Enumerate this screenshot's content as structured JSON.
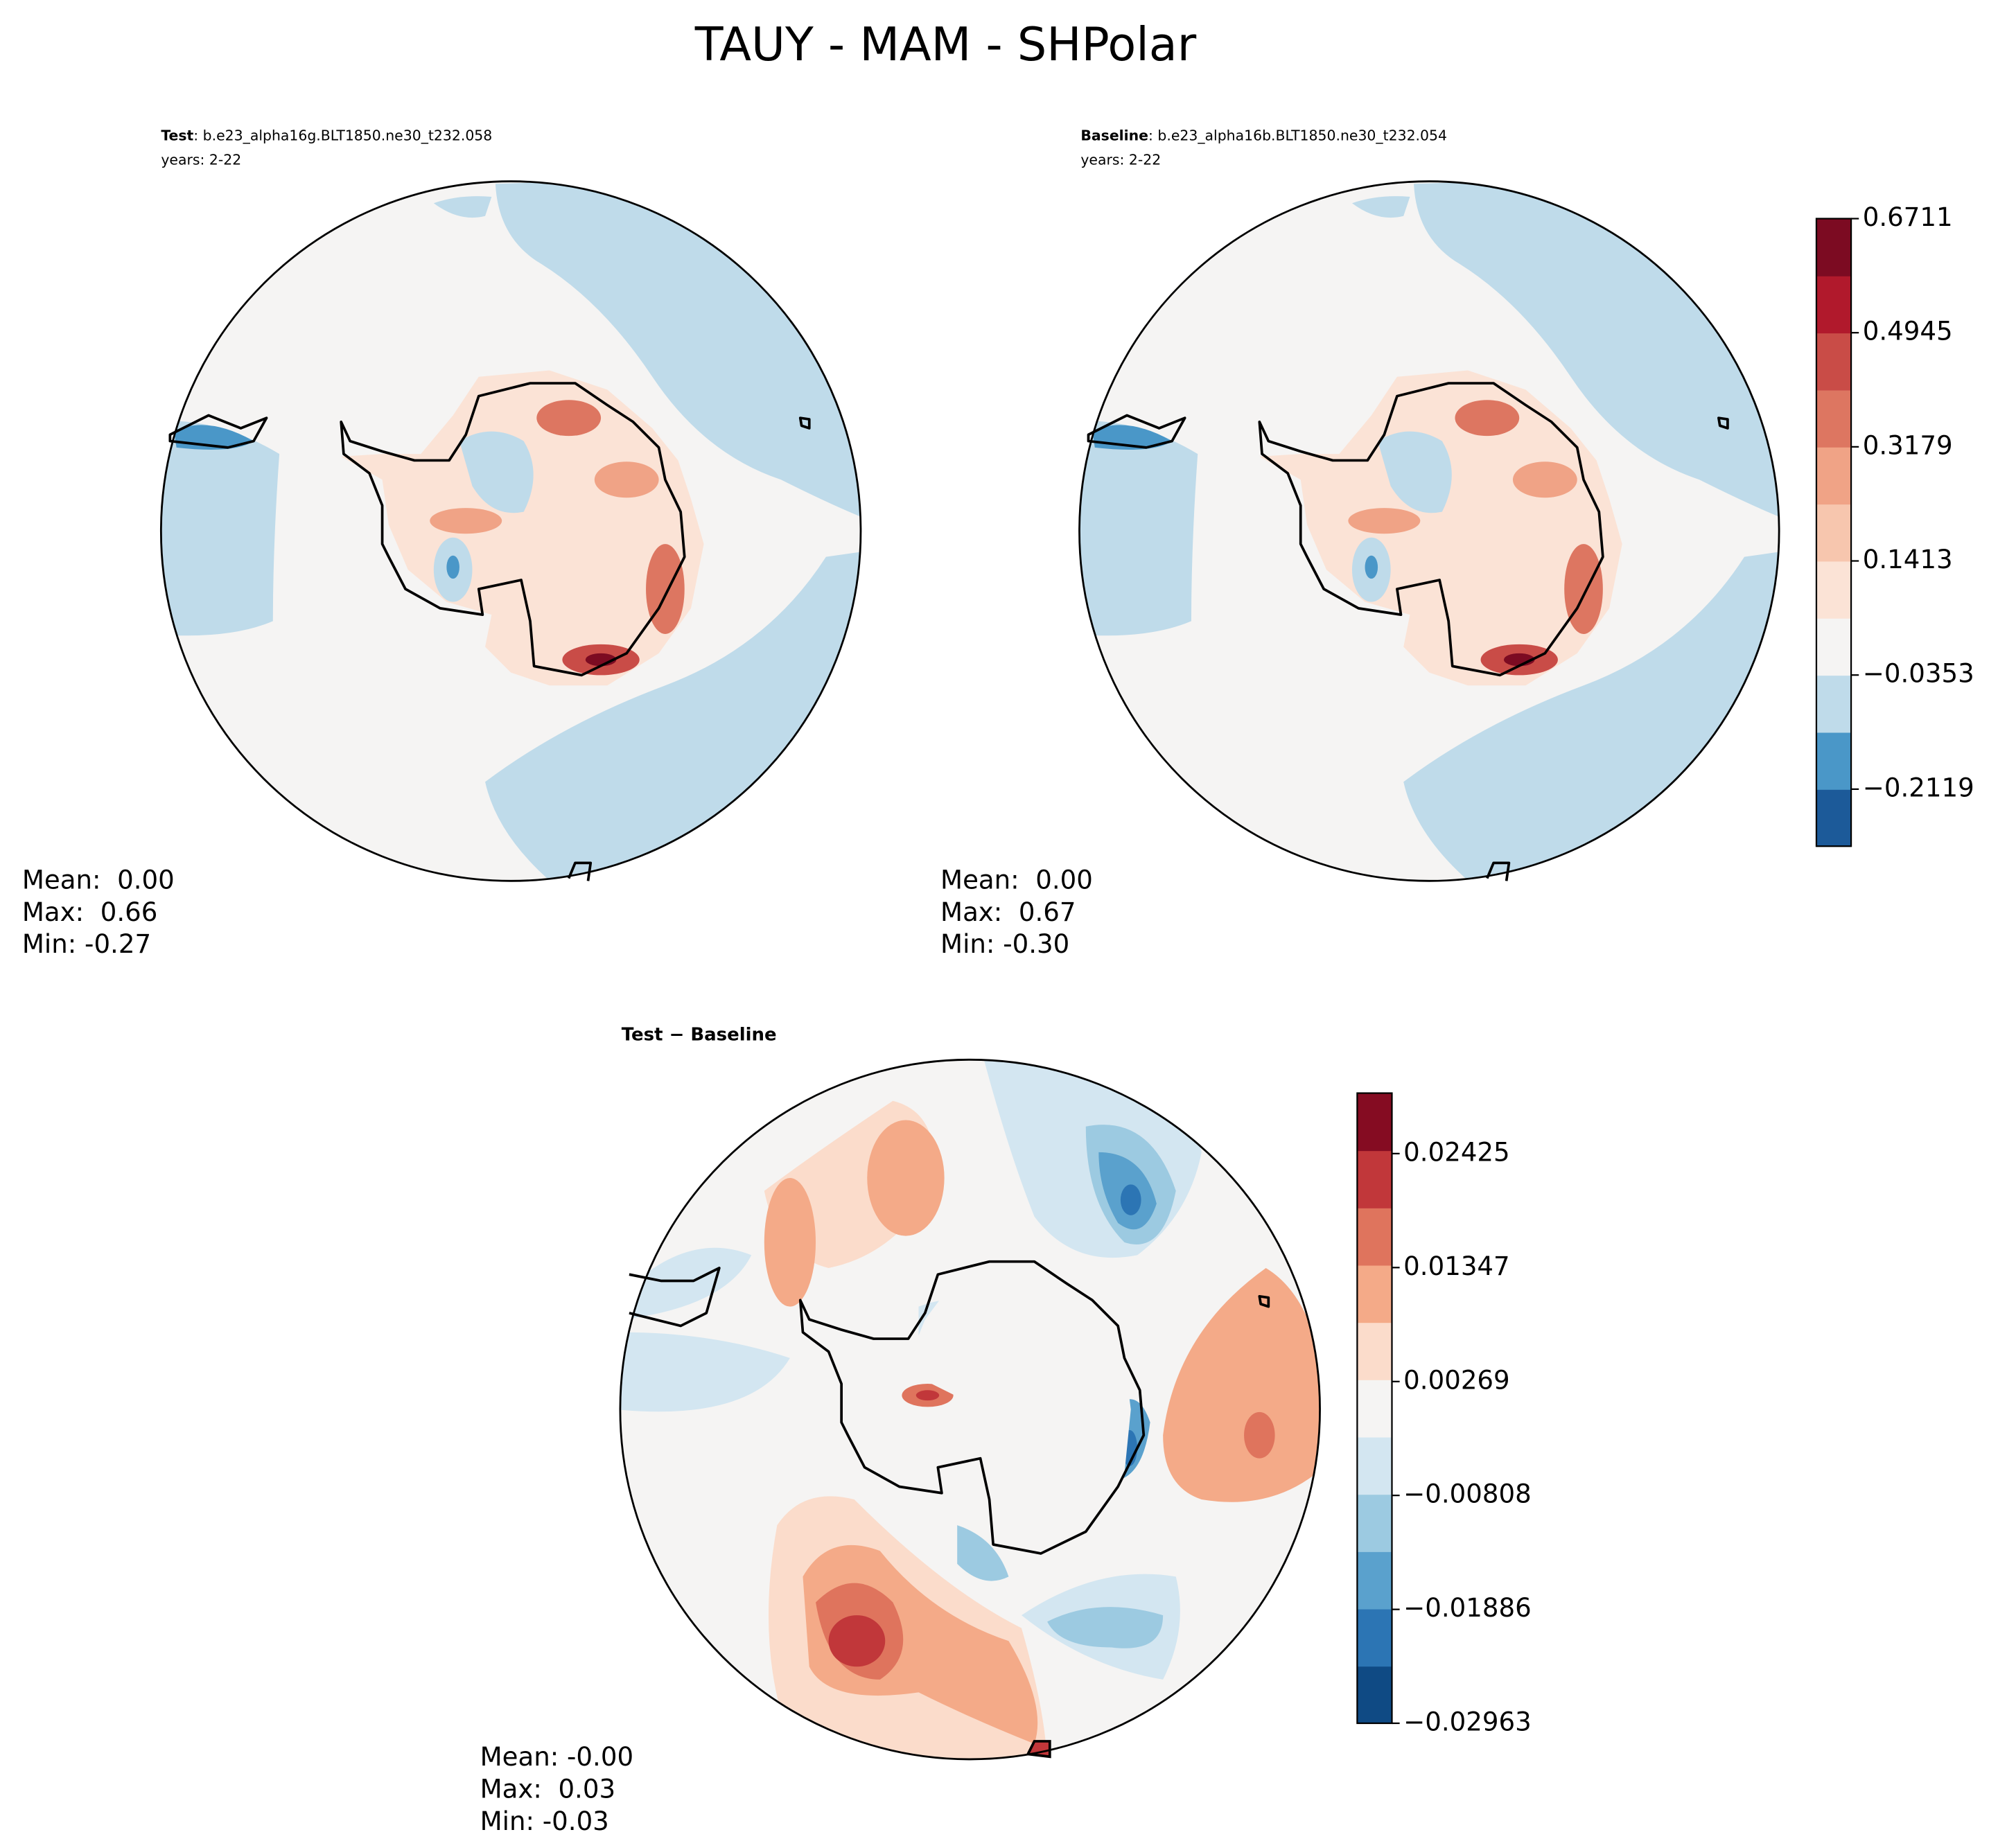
{
  "title": "TAUY - MAM - SHPolar",
  "chart_data": [
    {
      "type": "map",
      "title_bold": "Test",
      "title": ": b.e23_alpha16g.BLT1850.ne30_t232.058",
      "subtitle": "years: 2-22",
      "stats": [
        "Mean:  0.00",
        "Max:  0.66",
        "Min: -0.27"
      ]
    },
    {
      "type": "map",
      "title_bold": "Baseline",
      "title": ": b.e23_alpha16b.BLT1850.ne30_t232.054",
      "subtitle": "years: 2-22",
      "stats": [
        "Mean:  0.00",
        "Max:  0.67",
        "Min: -0.30"
      ]
    },
    {
      "type": "colorbar",
      "ylim": [
        -0.3002,
        0.6711
      ],
      "yticks": [
        {
          "value": -0.2119,
          "label": "−0.2119"
        },
        {
          "value": -0.0353,
          "label": "−0.0353"
        },
        0.1413,
        0.3179,
        0.4945,
        0.6711
      ],
      "colors": [
        "#1c5a99",
        "#4a97c8",
        "#bfdbea",
        "#f5f4f3",
        "#fbe3d6",
        "#f7c6ae",
        "#f0a386",
        "#dd7661",
        "#c94c47",
        "#b1192c",
        "#7c0b22"
      ]
    },
    {
      "type": "map",
      "title_bold": "Test − Baseline",
      "stats": [
        "Mean: -0.00",
        "Max:  0.03",
        "Min: -0.03"
      ]
    },
    {
      "type": "colorbar",
      "ylim": [
        -0.02963,
        0.02997
      ],
      "yticks": [
        {
          "value": -0.02963,
          "label": "−0.02963"
        },
        {
          "value": -0.01886,
          "label": "−0.01886"
        },
        {
          "value": -0.00808,
          "label": "−0.00808"
        },
        0.00269,
        0.01347,
        0.02425
      ],
      "colors": [
        "#0f4a84",
        "#2c75b4",
        "#5aa1cd",
        "#9ccae1",
        "#d3e6f1",
        "#f5f4f3",
        "#fbdccb",
        "#f4aa88",
        "#df745d",
        "#c1373a",
        "#850c22"
      ]
    }
  ]
}
